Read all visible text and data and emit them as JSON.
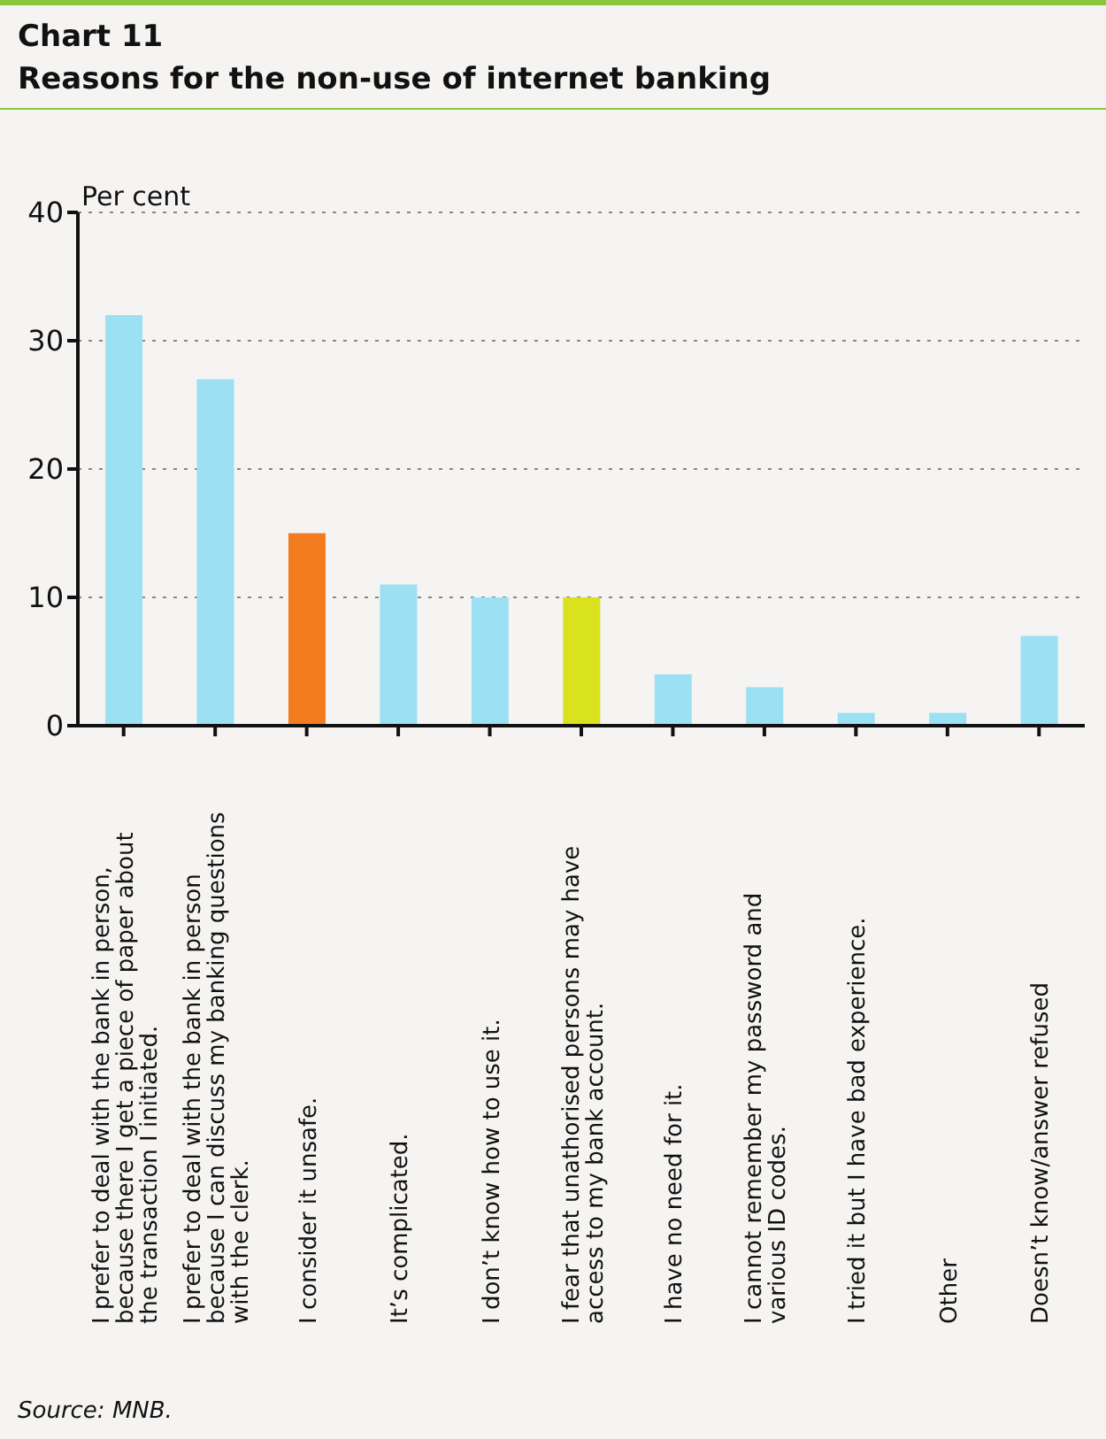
{
  "chart_data": {
    "type": "bar",
    "title": "Chart 11",
    "subtitle": "Reasons for the non-use of internet banking",
    "ylabel": "Per cent",
    "categories": [
      "I prefer to deal with the bank in person,\nbecause there I get a piece of paper about\nthe transaction I initiated.",
      "I prefer to deal with the bank in person\nbecause I can discuss my banking questions\nwith the clerk.",
      "I consider it unsafe.",
      "It’s complicated.",
      "I don’t know how to use it.",
      "I fear that unathorised persons may have\naccess to my bank account.",
      "I have no need for it.",
      "I cannot remember my password and\nvarious ID codes.",
      "I tried it but I have bad experience.",
      "Other",
      "Doesn’t know/answer refused"
    ],
    "values": [
      32,
      27,
      15,
      11,
      10,
      10,
      4,
      3,
      1,
      1,
      7
    ],
    "colors": [
      "#9be0f3",
      "#9be0f3",
      "#f47c20",
      "#9be0f3",
      "#9be0f3",
      "#d9e21c",
      "#9be0f3",
      "#9be0f3",
      "#9be0f3",
      "#9be0f3",
      "#9be0f3"
    ],
    "ylim": [
      0,
      40
    ],
    "yticks": [
      0,
      10,
      20,
      30,
      40
    ],
    "grid": "y",
    "annotations": [
      "Source: MNB."
    ]
  }
}
